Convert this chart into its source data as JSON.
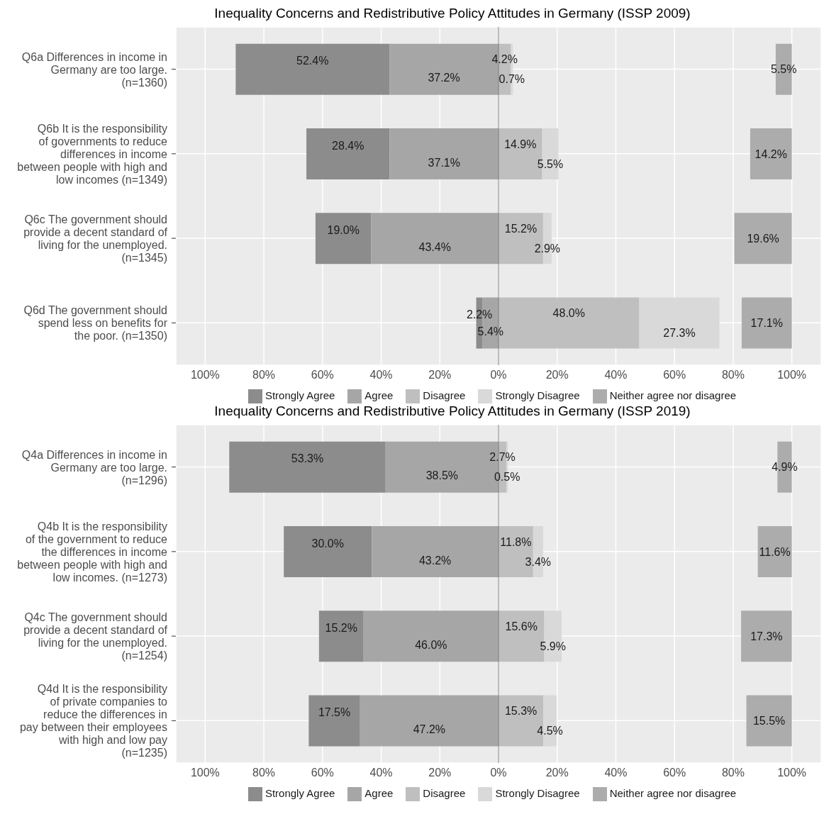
{
  "chart_data": [
    {
      "type": "bar",
      "orientation": "horizontal",
      "title": "Inequality Concerns and Redistributive Policy Attitudes in Germany (ISSP 2009)",
      "categories": [
        "Q6a Differences in income in Germany are too large. (n=1360)",
        "Q6b It is the responsibility of governments to reduce differences in income between people with high and low incomes (n=1349)",
        "Q6c The government should provide a decent standard of living for the unemployed. (n=1345)",
        "Q6d The government should spend less on benefits for the poor. (n=1350)"
      ],
      "series": [
        {
          "name": "Strongly Agree",
          "color": "#8c8c8c",
          "values": [
            52.4,
            28.4,
            19.0,
            2.2
          ],
          "base": [
            -89.6,
            -65.5,
            -62.4,
            -7.6
          ],
          "value_labels": [
            "52.4%",
            "28.4%",
            "19.0%",
            "2.2%"
          ]
        },
        {
          "name": "Agree",
          "color": "#a6a6a6",
          "values": [
            37.2,
            37.1,
            43.4,
            5.4
          ],
          "base": [
            -37.2,
            -37.1,
            -43.4,
            -5.4
          ],
          "value_labels": [
            "37.2%",
            "37.1%",
            "43.4%",
            "5.4%"
          ]
        },
        {
          "name": "Disagree",
          "color": "#bfbfbf",
          "values": [
            4.2,
            14.9,
            15.2,
            48.0
          ],
          "base": [
            0,
            0,
            0,
            0
          ],
          "value_labels": [
            "4.2%",
            "14.9%",
            "15.2%",
            "48.0%"
          ]
        },
        {
          "name": "Strongly Disagree",
          "color": "#d9d9d9",
          "values": [
            0.7,
            5.5,
            2.9,
            27.3
          ],
          "base": [
            4.2,
            14.9,
            15.2,
            48.0
          ],
          "value_labels": [
            "0.7%",
            "5.5%",
            "2.9%",
            "27.3%"
          ]
        },
        {
          "name": "Neither agree nor disagree",
          "color": "#acacac",
          "values": [
            5.5,
            14.2,
            19.6,
            17.1
          ],
          "base": [
            94.5,
            85.8,
            80.4,
            82.9
          ],
          "value_labels": [
            "5.5%",
            "14.2%",
            "19.6%",
            "17.1%"
          ]
        }
      ],
      "xlim": [
        -110,
        110
      ],
      "xticks": [
        {
          "value": -100,
          "label": "100%"
        },
        {
          "value": -80,
          "label": "80%"
        },
        {
          "value": -60,
          "label": "60%"
        },
        {
          "value": -40,
          "label": "40%"
        },
        {
          "value": -20,
          "label": "20%"
        },
        {
          "value": 0,
          "label": "0%"
        },
        {
          "value": 20,
          "label": "20%"
        },
        {
          "value": 40,
          "label": "40%"
        },
        {
          "value": 60,
          "label": "60%"
        },
        {
          "value": 80,
          "label": "80%"
        },
        {
          "value": 100,
          "label": "100%"
        }
      ],
      "ref_lines": [
        {
          "axis": "x",
          "value": 0,
          "color": "#7f7f7f"
        }
      ],
      "grid": true,
      "legend": "bottom"
    },
    {
      "type": "bar",
      "orientation": "horizontal",
      "title": "Inequality Concerns and Redistributive Policy Attitudes in Germany (ISSP 2019)",
      "categories": [
        "Q4a Differences in income in Germany are too large. (n=1296)",
        "Q4b It is the responsibility of the government to reduce the differences in income between people with high and low incomes. (n=1273)",
        "Q4c The government should provide a decent standard of living for the unemployed. (n=1254)",
        "Q4d It is the responsibility of private companies to reduce the differences in pay between their employees with high and low pay (n=1235)"
      ],
      "series": [
        {
          "name": "Strongly Agree",
          "color": "#8c8c8c",
          "values": [
            53.3,
            30.0,
            15.2,
            17.5
          ],
          "base": [
            -91.8,
            -73.2,
            -61.2,
            -64.7
          ],
          "value_labels": [
            "53.3%",
            "30.0%",
            "15.2%",
            "17.5%"
          ]
        },
        {
          "name": "Agree",
          "color": "#a6a6a6",
          "values": [
            38.5,
            43.2,
            46.0,
            47.2
          ],
          "base": [
            -38.5,
            -43.2,
            -46.0,
            -47.2
          ],
          "value_labels": [
            "38.5%",
            "43.2%",
            "46.0%",
            "47.2%"
          ]
        },
        {
          "name": "Disagree",
          "color": "#bfbfbf",
          "values": [
            2.7,
            11.8,
            15.6,
            15.3
          ],
          "base": [
            0,
            0,
            0,
            0
          ],
          "value_labels": [
            "2.7%",
            "11.8%",
            "15.6%",
            "15.3%"
          ]
        },
        {
          "name": "Strongly Disagree",
          "color": "#d9d9d9",
          "values": [
            0.5,
            3.4,
            5.9,
            4.5
          ],
          "base": [
            2.7,
            11.8,
            15.6,
            15.3
          ],
          "value_labels": [
            "0.5%",
            "3.4%",
            "5.9%",
            "4.5%"
          ]
        },
        {
          "name": "Neither agree nor disagree",
          "color": "#acacac",
          "values": [
            4.9,
            11.6,
            17.3,
            15.5
          ],
          "base": [
            95.1,
            88.4,
            82.7,
            84.5
          ],
          "value_labels": [
            "4.9%",
            "11.6%",
            "17.3%",
            "15.5%"
          ]
        }
      ],
      "xlim": [
        -110,
        110
      ],
      "xticks": [
        {
          "value": -100,
          "label": "100%"
        },
        {
          "value": -80,
          "label": "80%"
        },
        {
          "value": -60,
          "label": "60%"
        },
        {
          "value": -40,
          "label": "40%"
        },
        {
          "value": -20,
          "label": "20%"
        },
        {
          "value": 0,
          "label": "0%"
        },
        {
          "value": 20,
          "label": "20%"
        },
        {
          "value": 40,
          "label": "40%"
        },
        {
          "value": 60,
          "label": "60%"
        },
        {
          "value": 80,
          "label": "80%"
        },
        {
          "value": 100,
          "label": "100%"
        }
      ],
      "ref_lines": [
        {
          "axis": "x",
          "value": 0,
          "color": "#7f7f7f"
        }
      ],
      "grid": true,
      "legend": "bottom"
    }
  ]
}
